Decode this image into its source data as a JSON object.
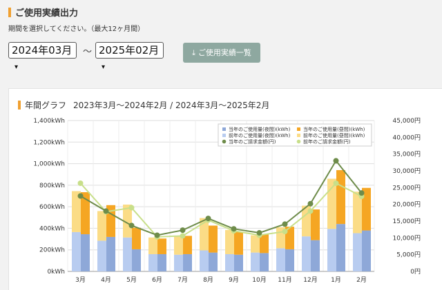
{
  "header": {
    "title": "ご使用実績出力",
    "description": "期間を選択してください。（最大12ヶ月間）"
  },
  "period": {
    "start": "2024年03月",
    "separator": "～",
    "end": "2025年02月"
  },
  "download_button": {
    "label": "ご使用実績一覧",
    "icon": "download-icon"
  },
  "colors": {
    "accent": "#f0a030",
    "button": "#8ea8a0",
    "cur_night": "#8ea8d8",
    "cur_day": "#f5a623",
    "prev_night": "#b8ccf0",
    "prev_day": "#fbdc86",
    "cur_amount": "#6e8c4a",
    "prev_amount": "#c8df8a"
  },
  "chart_data": {
    "type": "bar",
    "title": "年間グラフ",
    "subtitle": "2023年3月～2024年2月 / 2024年3月～2025年2月",
    "categories": [
      "3月",
      "4月",
      "5月",
      "6月",
      "7月",
      "8月",
      "9月",
      "10月",
      "11月",
      "12月",
      "1月",
      "2月"
    ],
    "ylim_left": [
      0,
      1400
    ],
    "yticks_left": [
      "0kWh",
      "200kWh",
      "400kWh",
      "600kWh",
      "800kWh",
      "1,000kWh",
      "1,200kWh",
      "1,400kWh"
    ],
    "ylim_right": [
      0,
      45000
    ],
    "yticks_right": [
      "0円",
      "5,000円",
      "10,000円",
      "15,000円",
      "20,000円",
      "25,000円",
      "30,000円",
      "35,000円",
      "40,000円",
      "45,000円"
    ],
    "grid": true,
    "legend_position": "top-right",
    "series": [
      {
        "name": "当年のご使用量(夜間)(kWh)",
        "kind": "bar",
        "axis": "left",
        "group": "current",
        "values": [
          345,
          320,
          205,
          160,
          160,
          175,
          155,
          170,
          205,
          290,
          440,
          380
        ]
      },
      {
        "name": "当年のご使用量(昼間)(kWh)",
        "kind": "bar",
        "axis": "left",
        "group": "current",
        "values": [
          390,
          295,
          200,
          145,
          170,
          250,
          210,
          175,
          210,
          285,
          500,
          395
        ]
      },
      {
        "name": "前年のご使用量(夜間)(kWh)",
        "kind": "bar",
        "axis": "left",
        "group": "previous",
        "values": [
          365,
          285,
          315,
          160,
          155,
          195,
          160,
          175,
          215,
          325,
          395,
          355
        ]
      },
      {
        "name": "前年のご使用量(昼間)(kWh)",
        "kind": "bar",
        "axis": "left",
        "group": "previous",
        "values": [
          380,
          275,
          305,
          155,
          170,
          300,
          225,
          160,
          195,
          285,
          465,
          385
        ]
      },
      {
        "name": "当年のご請求金額(円)",
        "kind": "line",
        "axis": "right",
        "values": [
          22500,
          18000,
          13700,
          10800,
          12300,
          15800,
          12700,
          11500,
          14100,
          20200,
          33000,
          23400
        ]
      },
      {
        "name": "前年のご請求金額(円)",
        "kind": "line",
        "axis": "right",
        "values": [
          26300,
          17800,
          19000,
          10300,
          10600,
          15300,
          12100,
          10800,
          11900,
          18000,
          26300,
          22400
        ]
      }
    ]
  }
}
